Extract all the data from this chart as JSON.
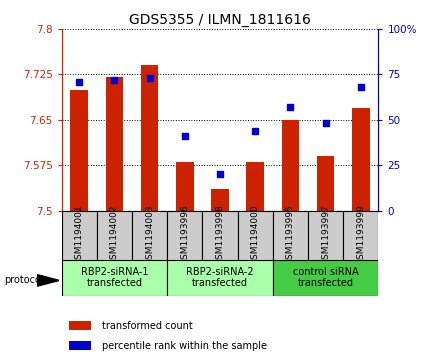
{
  "title": "GDS5355 / ILMN_1811616",
  "samples": [
    "GSM1194001",
    "GSM1194002",
    "GSM1194003",
    "GSM1193996",
    "GSM1193998",
    "GSM1194000",
    "GSM1193995",
    "GSM1193997",
    "GSM1193999"
  ],
  "bar_values": [
    7.7,
    7.72,
    7.74,
    7.58,
    7.535,
    7.58,
    7.65,
    7.59,
    7.67
  ],
  "dot_values": [
    71,
    72,
    73,
    41,
    20,
    44,
    57,
    48,
    68
  ],
  "ymin": 7.5,
  "ymax": 7.8,
  "y2min": 0,
  "y2max": 100,
  "yticks": [
    7.5,
    7.575,
    7.65,
    7.725,
    7.8
  ],
  "y2ticks": [
    0,
    25,
    50,
    75,
    100
  ],
  "bar_color": "#cc2200",
  "dot_color": "#0000cc",
  "sample_box_color": "#cccccc",
  "groups": [
    {
      "label": "RBP2-siRNA-1\ntransfected",
      "start": 0,
      "end": 3,
      "color": "#aaffaa"
    },
    {
      "label": "RBP2-siRNA-2\ntransfected",
      "start": 3,
      "end": 6,
      "color": "#aaffaa"
    },
    {
      "label": "control siRNA\ntransfected",
      "start": 6,
      "end": 9,
      "color": "#44cc44"
    }
  ],
  "protocol_label": "protocol",
  "title_fontsize": 10,
  "tick_fontsize": 7.5,
  "label_fontsize": 6.5,
  "group_fontsize": 7,
  "legend_fontsize": 7,
  "bar_width": 0.5
}
